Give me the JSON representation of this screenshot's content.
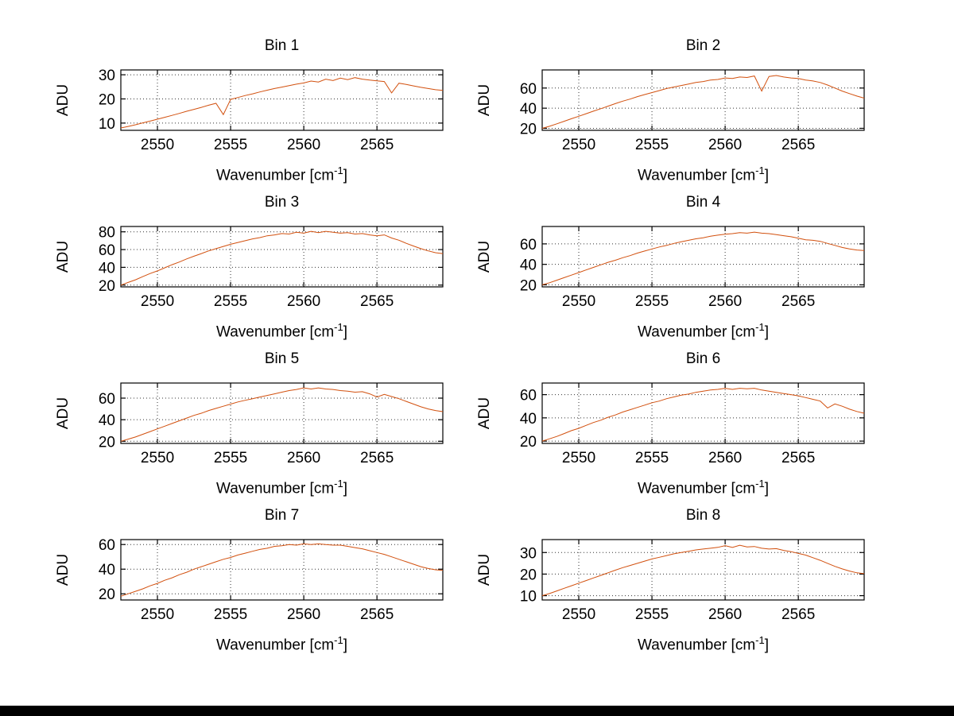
{
  "figure": {
    "background": "#ffffff",
    "bottom_bar_color": "#000000"
  },
  "chart_data": [
    {
      "type": "line",
      "title": "Bin 1",
      "xlabel": "Wavenumber [cm⁻¹]",
      "xlabel_parts": {
        "base": "Wavenumber [cm",
        "sup": "-1",
        "close": "]"
      },
      "ylabel": "ADU",
      "xlim": [
        2547.5,
        2569.5
      ],
      "x_start": 2547.5,
      "x_step": 0.5,
      "x_ticks": [
        2550,
        2555,
        2560,
        2565
      ],
      "y_ticks": [
        10,
        20,
        30
      ],
      "ylim": [
        7,
        32
      ],
      "grid": "dotted",
      "line_color": "#d2500e",
      "values": [
        8.0,
        8.6,
        9.3,
        10.1,
        10.8,
        11.6,
        12.4,
        13.2,
        14.0,
        14.9,
        15.7,
        16.5,
        17.4,
        18.2,
        13.5,
        19.8,
        20.6,
        21.4,
        22.1,
        22.9,
        23.6,
        24.3,
        24.9,
        25.5,
        26.1,
        26.6,
        27.4,
        27.0,
        28.2,
        27.6,
        28.6,
        28.0,
        28.8,
        28.2,
        27.8,
        27.5,
        27.2,
        22.5,
        26.5,
        26.0,
        25.4,
        24.8,
        24.3,
        23.8,
        23.5
      ]
    },
    {
      "type": "line",
      "title": "Bin 2",
      "xlabel": "Wavenumber [cm⁻¹]",
      "xlabel_parts": {
        "base": "Wavenumber [cm",
        "sup": "-1",
        "close": "]"
      },
      "ylabel": "ADU",
      "xlim": [
        2547.5,
        2569.5
      ],
      "x_start": 2547.5,
      "x_step": 0.5,
      "x_ticks": [
        2550,
        2555,
        2560,
        2565
      ],
      "y_ticks": [
        20,
        40,
        60
      ],
      "ylim": [
        18,
        78
      ],
      "grid": "dotted",
      "line_color": "#d2500e",
      "values": [
        20,
        22,
        24.5,
        27,
        29.5,
        32,
        34.5,
        37,
        39.5,
        42,
        44.5,
        47,
        49,
        51.5,
        53.5,
        55.5,
        57.5,
        59.5,
        61,
        62.5,
        64,
        65.5,
        66.5,
        68,
        68.5,
        70,
        69.5,
        71,
        70.5,
        72,
        57,
        71.5,
        72.5,
        71,
        70,
        69.5,
        68,
        67,
        65.5,
        63,
        60,
        57,
        54.5,
        52,
        50
      ]
    },
    {
      "type": "line",
      "title": "Bin 3",
      "xlabel": "Wavenumber [cm⁻¹]",
      "xlabel_parts": {
        "base": "Wavenumber [cm",
        "sup": "-1",
        "close": "]"
      },
      "ylabel": "ADU",
      "xlim": [
        2547.5,
        2569.5
      ],
      "x_start": 2547.5,
      "x_step": 0.5,
      "x_ticks": [
        2550,
        2555,
        2560,
        2565
      ],
      "y_ticks": [
        20,
        40,
        60,
        80
      ],
      "ylim": [
        18,
        86
      ],
      "grid": "dotted",
      "line_color": "#d2500e",
      "values": [
        20,
        23,
        26,
        29.5,
        33,
        36,
        39.5,
        43,
        46,
        49.5,
        52.5,
        55.5,
        58.5,
        61,
        63.5,
        66,
        68,
        70,
        72,
        73.5,
        75.5,
        76.5,
        78,
        77.5,
        79.5,
        78.5,
        80.5,
        79,
        80.5,
        79.5,
        78.5,
        79,
        77.5,
        78,
        76.5,
        75.5,
        76.5,
        73,
        70.5,
        67,
        64,
        61,
        58.5,
        56.5,
        55.5
      ]
    },
    {
      "type": "line",
      "title": "Bin 4",
      "xlabel": "Wavenumber [cm⁻¹]",
      "xlabel_parts": {
        "base": "Wavenumber [cm",
        "sup": "-1",
        "close": "]"
      },
      "ylabel": "ADU",
      "xlim": [
        2547.5,
        2569.5
      ],
      "x_start": 2547.5,
      "x_step": 0.5,
      "x_ticks": [
        2550,
        2555,
        2560,
        2565
      ],
      "y_ticks": [
        20,
        40,
        60
      ],
      "ylim": [
        18,
        77
      ],
      "grid": "dotted",
      "line_color": "#d2500e",
      "values": [
        20,
        22,
        24.5,
        27,
        29.5,
        32,
        34.5,
        37,
        39.5,
        42,
        44,
        46.5,
        48.5,
        51,
        53,
        55,
        57,
        58.5,
        60.5,
        62,
        63.5,
        65,
        66,
        67.5,
        68.5,
        69.5,
        70,
        71,
        70.5,
        71.5,
        70.5,
        70,
        69,
        68,
        67,
        65.5,
        64,
        63.5,
        62.5,
        60.5,
        58.5,
        56.5,
        55,
        54,
        53.5
      ]
    },
    {
      "type": "line",
      "title": "Bin 5",
      "xlabel": "Wavenumber [cm⁻¹]",
      "xlabel_parts": {
        "base": "Wavenumber [cm",
        "sup": "-1",
        "close": "]"
      },
      "ylabel": "ADU",
      "xlim": [
        2547.5,
        2569.5
      ],
      "x_start": 2547.5,
      "x_step": 0.5,
      "x_ticks": [
        2550,
        2555,
        2560,
        2565
      ],
      "y_ticks": [
        20,
        40,
        60
      ],
      "ylim": [
        18,
        74
      ],
      "grid": "dotted",
      "line_color": "#d2500e",
      "values": [
        20,
        22,
        24,
        26.5,
        29,
        31.5,
        34,
        36.5,
        39,
        41.5,
        44,
        46,
        48.5,
        50.5,
        52.5,
        54.5,
        56.5,
        58,
        59.5,
        61,
        62.5,
        64,
        65.5,
        67,
        68,
        69.5,
        68.5,
        69.5,
        68.5,
        68,
        67,
        66.5,
        65.5,
        66,
        64,
        61,
        63.5,
        61.5,
        59.5,
        57,
        54.5,
        52,
        50,
        48.5,
        47.5
      ]
    },
    {
      "type": "line",
      "title": "Bin 6",
      "xlabel": "Wavenumber [cm⁻¹]",
      "xlabel_parts": {
        "base": "Wavenumber [cm",
        "sup": "-1",
        "close": "]"
      },
      "ylabel": "ADU",
      "xlim": [
        2547.5,
        2569.5
      ],
      "x_start": 2547.5,
      "x_step": 0.5,
      "x_ticks": [
        2550,
        2555,
        2560,
        2565
      ],
      "y_ticks": [
        20,
        40,
        60
      ],
      "ylim": [
        18,
        70
      ],
      "grid": "dotted",
      "line_color": "#d2500e",
      "values": [
        20,
        22,
        24,
        26.5,
        29,
        31,
        33.5,
        36,
        38,
        40.5,
        42.5,
        45,
        47,
        49,
        51,
        53,
        54.5,
        56.5,
        58,
        59.5,
        60.5,
        62,
        63,
        64,
        64.5,
        65.5,
        64.5,
        65.5,
        65,
        65.5,
        64,
        63,
        62,
        61,
        60,
        59,
        57.5,
        56,
        54.5,
        48.5,
        52,
        50,
        47.5,
        45.5,
        44
      ]
    },
    {
      "type": "line",
      "title": "Bin 7",
      "xlabel": "Wavenumber [cm⁻¹]",
      "xlabel_parts": {
        "base": "Wavenumber [cm",
        "sup": "-1",
        "close": "]"
      },
      "ylabel": "ADU",
      "xlim": [
        2547.5,
        2569.5
      ],
      "x_start": 2547.5,
      "x_step": 0.5,
      "x_ticks": [
        2550,
        2555,
        2560,
        2565
      ],
      "y_ticks": [
        20,
        40,
        60
      ],
      "ylim": [
        15,
        64
      ],
      "grid": "dotted",
      "line_color": "#d2500e",
      "values": [
        18,
        20,
        22,
        24,
        26.5,
        28.5,
        31,
        33,
        35.5,
        37.5,
        40,
        42,
        44,
        46,
        48,
        49.5,
        51.5,
        53,
        54.5,
        56,
        57,
        58.5,
        59,
        60,
        59.5,
        60.5,
        60,
        60.5,
        60,
        59.5,
        59.5,
        58.5,
        57.5,
        56.5,
        55,
        53.5,
        52,
        50,
        48,
        46,
        44,
        42,
        40.5,
        39.5,
        39
      ]
    },
    {
      "type": "line",
      "title": "Bin 8",
      "xlabel": "Wavenumber [cm⁻¹]",
      "xlabel_parts": {
        "base": "Wavenumber [cm",
        "sup": "-1",
        "close": "]"
      },
      "ylabel": "ADU",
      "xlim": [
        2547.5,
        2569.5
      ],
      "x_start": 2547.5,
      "x_step": 0.5,
      "x_ticks": [
        2550,
        2555,
        2560,
        2565
      ],
      "y_ticks": [
        10,
        20,
        30
      ],
      "ylim": [
        8,
        36
      ],
      "grid": "dotted",
      "line_color": "#d2500e",
      "values": [
        10,
        11,
        12.2,
        13.4,
        14.6,
        15.8,
        17,
        18.2,
        19.4,
        20.6,
        21.8,
        23,
        24,
        25,
        26,
        27,
        27.8,
        28.6,
        29.4,
        30,
        30.6,
        31.2,
        31.6,
        32,
        32.4,
        33.2,
        32.4,
        33.4,
        32.6,
        32.8,
        32,
        31.6,
        31.8,
        31,
        30.4,
        29.6,
        28.8,
        27.6,
        26.4,
        25,
        23.6,
        22.4,
        21.4,
        20.6,
        20.2
      ]
    }
  ]
}
